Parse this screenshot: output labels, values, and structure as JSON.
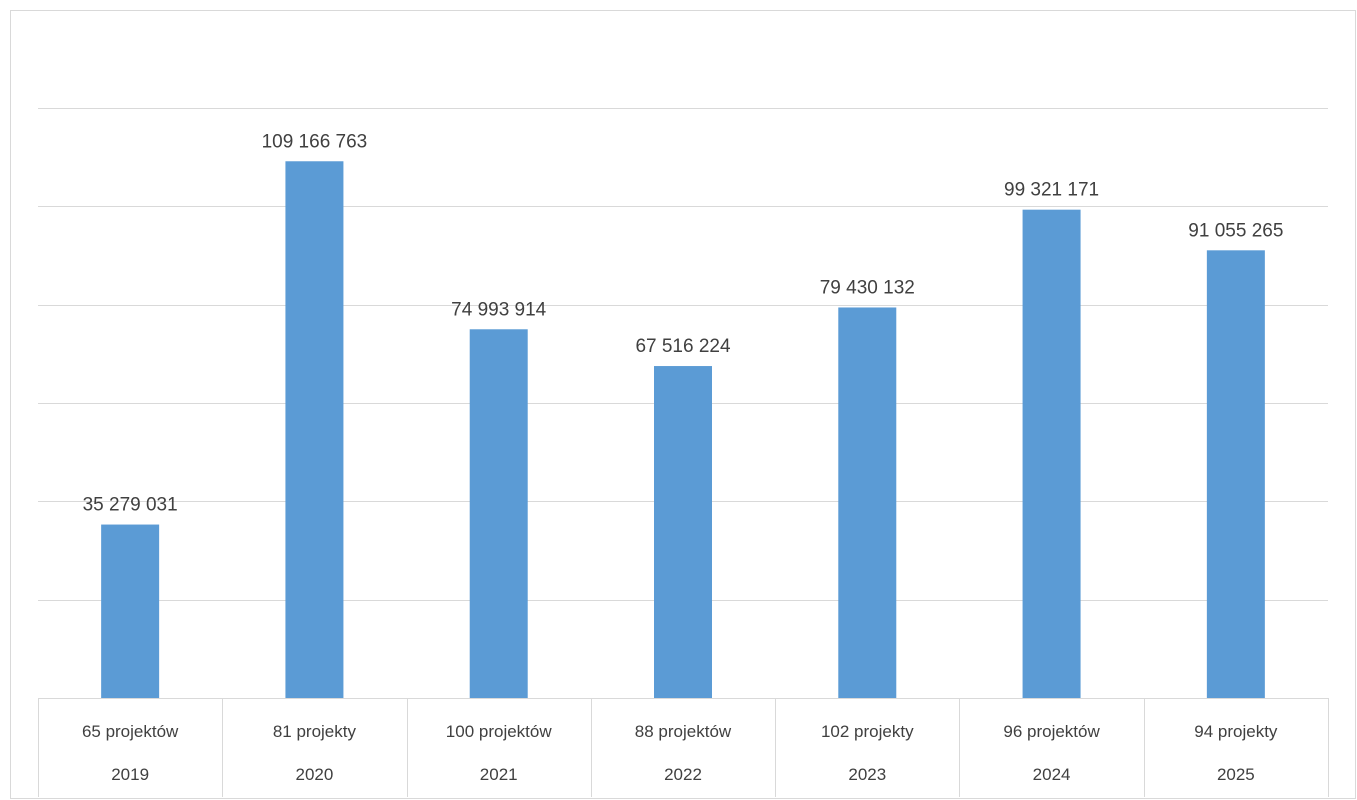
{
  "chart_data": {
    "type": "bar",
    "title": "",
    "xlabel": "",
    "ylabel": "",
    "ylim": [
      0,
      120000000
    ],
    "grid": true,
    "gridline_step": 20000000,
    "value_axis_labels_shown": false,
    "legend": "none",
    "bar_color": "#5b9bd5",
    "categories": [
      {
        "year": "2019",
        "projects": "65 projektów"
      },
      {
        "year": "2020",
        "projects": "81 projekty"
      },
      {
        "year": "2021",
        "projects": "100 projektów"
      },
      {
        "year": "2022",
        "projects": "88 projektów"
      },
      {
        "year": "2023",
        "projects": "102 projekty"
      },
      {
        "year": "2024",
        "projects": "96 projektów"
      },
      {
        "year": "2025",
        "projects": "94 projekty"
      }
    ],
    "values": [
      35279031,
      109166763,
      74993914,
      67516224,
      79430132,
      99321171,
      91055265
    ],
    "data_labels": [
      "35 279 031",
      "109 166 763",
      "74 993 914",
      "67 516 224",
      "79 430 132",
      "99 321 171",
      "91 055 265"
    ]
  }
}
